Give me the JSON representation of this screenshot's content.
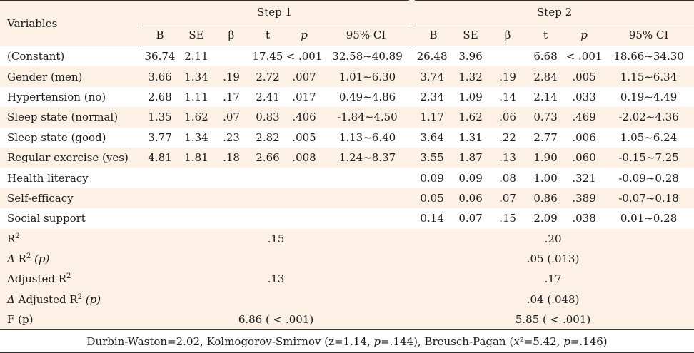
{
  "header": {
    "variables_label": "Variables",
    "step1_label": "Step 1",
    "step2_label": "Step 2",
    "columns": [
      "B",
      "SE",
      "β",
      "t",
      "p",
      "95% CI",
      "B",
      "SE",
      "β",
      "t",
      "p",
      "95% CI"
    ]
  },
  "rows": [
    {
      "label": "(Constant)",
      "cells": [
        "36.74",
        "2.11",
        "",
        "17.45",
        "< .001",
        "32.58~40.89",
        "26.48",
        "3.96",
        "",
        "6.68",
        "< .001",
        "18.66~34.30"
      ]
    },
    {
      "label": "Gender (men)",
      "cells": [
        "3.66",
        "1.34",
        ".19",
        "2.72",
        ".007",
        "1.01~6.30",
        "3.74",
        "1.32",
        ".19",
        "2.84",
        ".005",
        "1.15~6.34"
      ]
    },
    {
      "label": "Hypertension (no)",
      "cells": [
        "2.68",
        "1.11",
        ".17",
        "2.41",
        ".017",
        "0.49~4.86",
        "2.34",
        "1.09",
        ".14",
        "2.14",
        ".033",
        "0.19~4.49"
      ]
    },
    {
      "label": "Sleep state (normal)",
      "cells": [
        "1.35",
        "1.62",
        ".07",
        "0.83",
        ".406",
        "-1.84~4.50",
        "1.17",
        "1.62",
        ".06",
        "0.73",
        ".469",
        "-2.02~4.36"
      ]
    },
    {
      "label": "Sleep state (good)",
      "cells": [
        "3.77",
        "1.34",
        ".23",
        "2.82",
        ".005",
        "1.13~6.40",
        "3.64",
        "1.31",
        ".22",
        "2.77",
        ".006",
        "1.05~6.24"
      ]
    },
    {
      "label": "Regular exercise (yes)",
      "cells": [
        "4.81",
        "1.81",
        ".18",
        "2.66",
        ".008",
        "1.24~8.37",
        "3.55",
        "1.87",
        ".13",
        "1.90",
        ".060",
        "-0.15~7.25"
      ]
    },
    {
      "label": "Health literacy",
      "cells": [
        "",
        "",
        "",
        "",
        "",
        "",
        "0.09",
        "0.09",
        ".08",
        "1.00",
        ".321",
        "-0.09~0.28"
      ]
    },
    {
      "label": "Self-efficacy",
      "cells": [
        "",
        "",
        "",
        "",
        "",
        "",
        "0.05",
        "0.06",
        ".07",
        "0.86",
        ".389",
        "-0.07~0.18"
      ]
    },
    {
      "label": "Social support",
      "cells": [
        "",
        "",
        "",
        "",
        "",
        "",
        "0.14",
        "0.07",
        ".15",
        "2.09",
        ".038",
        "0.01~0.28"
      ]
    }
  ],
  "summary": {
    "r2": {
      "label": "R",
      "sup": "2",
      "step1": ".15",
      "step2": ".20"
    },
    "delta_r2": {
      "label_delta": "Δ",
      "label": " R",
      "sup": "2",
      "label_p": " (p)",
      "step2": ".05 (.013)"
    },
    "adj_r2": {
      "label": "Adjusted R",
      "sup": "2",
      "step1": ".13",
      "step2": ".17"
    },
    "delta_adj_r2": {
      "label_delta": "Δ",
      "label": " Adjusted R",
      "sup": "2",
      "label_p": " (p)",
      "step2": ".04 (.048)"
    },
    "f": {
      "label": "F (p)",
      "step1": "6.86 ( < .001)",
      "step2": "5.85 ( < .001)"
    }
  },
  "footer": "Durbin-Waston=2.02,  Kolmogorov-Smirnov (z=1.14,  p=.144),  Breusch-Pagan (x²=5.42,  p=.146)"
}
